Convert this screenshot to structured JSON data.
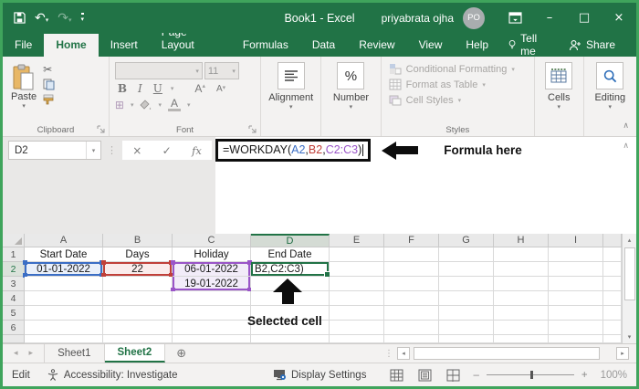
{
  "colors": {
    "excel_green": "#217346",
    "window_border_green": "#3fa45c",
    "ref_blue": "#3b6ec5",
    "ref_red": "#c0403a",
    "ref_purple": "#9a55c8"
  },
  "titlebar": {
    "title": "Book1 - Excel",
    "user_name": "priyabrata ojha",
    "avatar_initials": "PO"
  },
  "tabs": {
    "items": [
      "File",
      "Home",
      "Insert",
      "Page Layout",
      "Formulas",
      "Data",
      "Review",
      "View",
      "Help"
    ],
    "active": "Home",
    "tell_me": "Tell me",
    "share": "Share"
  },
  "ribbon": {
    "paste_label": "Paste",
    "clipboard_group_label": "Clipboard",
    "font_bold": "B",
    "font_italic": "I",
    "font_underline": "U",
    "font_letter": "A",
    "font_size_value": "11",
    "font_group_label": "Font",
    "alignment_label": "Alignment",
    "number_label": "Number",
    "number_icon_text": "%",
    "styles_items": [
      "Conditional Formatting",
      "Format as Table",
      "Cell Styles"
    ],
    "styles_group_label": "Styles",
    "cells_label": "Cells",
    "editing_label": "Editing"
  },
  "formula_bar": {
    "name_box_value": "D2",
    "fx_label": "fx",
    "formula_parts": [
      {
        "text": "=WORKDAY(",
        "color": "#1a1a1a"
      },
      {
        "text": "A2",
        "color": "#3b6ec5"
      },
      {
        "text": ",",
        "color": "#1a1a1a"
      },
      {
        "text": "B2",
        "color": "#c0403a"
      },
      {
        "text": ",",
        "color": "#1a1a1a"
      },
      {
        "text": "C2:C3",
        "color": "#9a55c8"
      },
      {
        "text": ")",
        "color": "#1a1a1a"
      }
    ],
    "annotation": "Formula here"
  },
  "grid": {
    "column_letters": [
      "A",
      "B",
      "C",
      "D",
      "E",
      "F",
      "G",
      "H",
      "I"
    ],
    "row_numbers": [
      "1",
      "2",
      "3",
      "4",
      "5",
      "6"
    ],
    "selected_column": "D",
    "selected_row": "2",
    "cells": {
      "A1": "Start Date",
      "B1": "Days",
      "C1": "Holiday",
      "D1": "End Date",
      "A2": "01-01-2022",
      "B2": "22",
      "C2": "06-01-2022",
      "D2": "B2,C2:C3)",
      "C3": "19-01-2022"
    },
    "cell_styles": {
      "A2": "ref-blue",
      "B2": "ref-red",
      "C2": "ref-purple-top",
      "C3": "ref-purple-bottom",
      "D2": "sel-cell left"
    },
    "annotation": "Selected cell"
  },
  "sheet_bar": {
    "sheets": [
      "Sheet1",
      "Sheet2"
    ],
    "active_sheet": "Sheet2"
  },
  "status_bar": {
    "mode": "Edit",
    "accessibility": "Accessibility: Investigate",
    "display_settings": "Display Settings",
    "zoom_level": "100%"
  },
  "icons": {
    "scissors": "✂",
    "check": "✓",
    "cancel": "×",
    "chevron_down": "▾",
    "chevron_up": "∧",
    "undo": "↶",
    "redo": "↷",
    "dots_vertical": "⋮",
    "plus_circle": "⊕",
    "borders_grid": "⊞",
    "minimize": "–",
    "maximize": "□",
    "close": "×",
    "arrow_left_small": "◂",
    "arrow_right_small": "▸",
    "arrow_up_small": "▴",
    "arrow_down_small": "▾"
  }
}
